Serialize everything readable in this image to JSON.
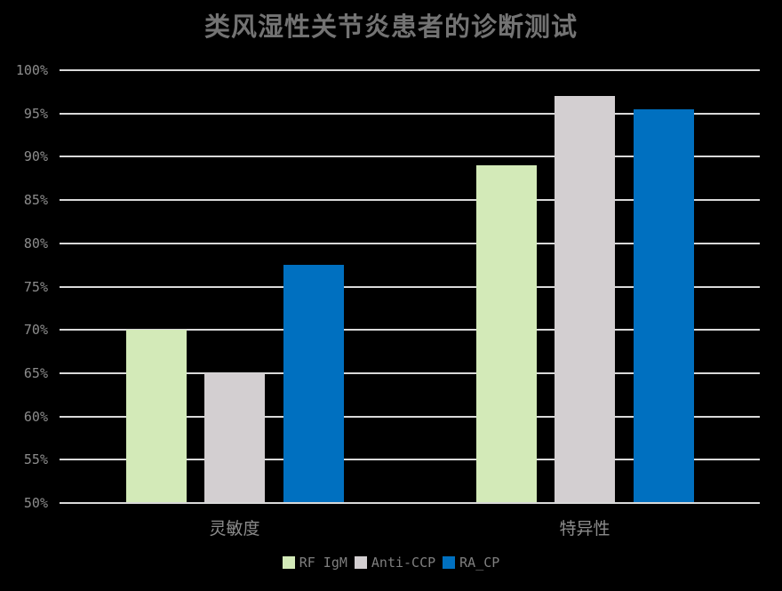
{
  "title": "类风湿性关节炎患者的诊断测试",
  "chart_data": {
    "type": "bar",
    "title": "类风湿性关节炎患者的诊断测试",
    "categories": [
      "灵敏度",
      "特异性"
    ],
    "series": [
      {
        "name": "RF IgM",
        "color": "#d3eab8",
        "values": [
          70,
          89
        ]
      },
      {
        "name": "Anti-CCP",
        "color": "#d3cfd1",
        "values": [
          65,
          97
        ]
      },
      {
        "name": "RA_CP",
        "color": "#0070c0",
        "values": [
          77.5,
          95.5
        ]
      }
    ],
    "xlabel": "",
    "ylabel": "",
    "ylim": [
      50,
      100
    ],
    "ytick_step": 5,
    "ytick_suffix": "%",
    "grid": true,
    "legend_position": "bottom",
    "background": "#000000",
    "gridline_color": "#d9d9d9",
    "text_color": "#8c8c8c"
  }
}
